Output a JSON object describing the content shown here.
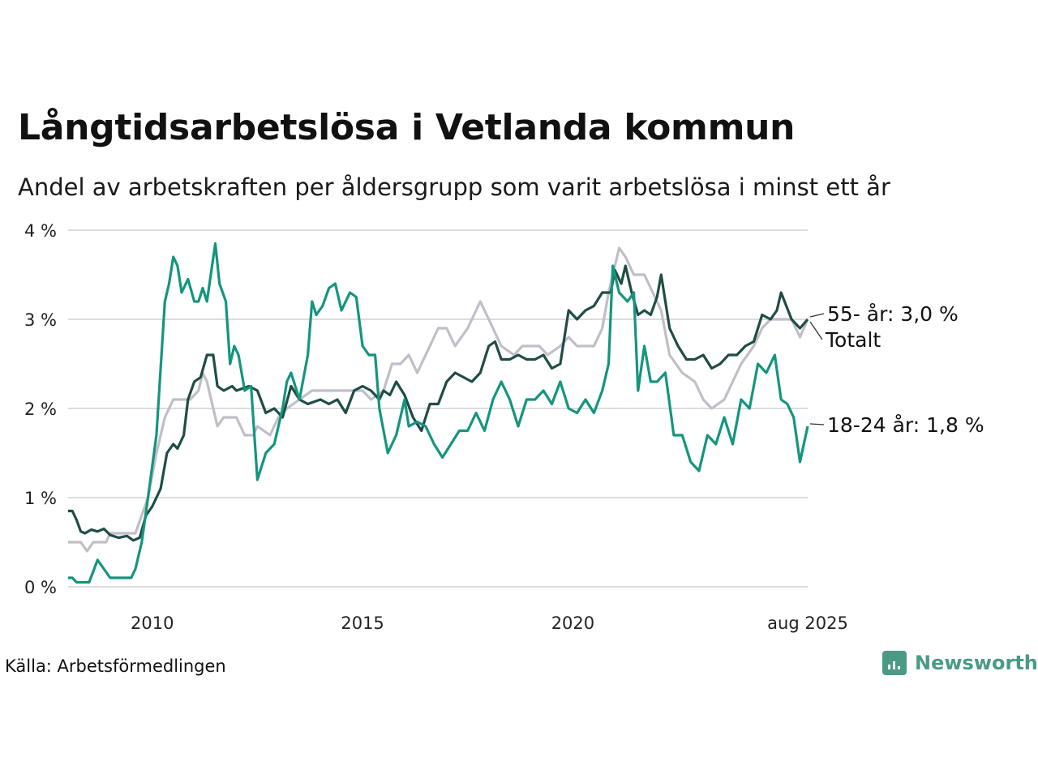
{
  "title": "Långtidsarbetslösa i Vetlanda kommun",
  "subtitle": "Andel av arbetskraften per åldersgrupp som varit arbetslösa i minst ett år",
  "source": "Källa: Arbetsförmedlingen",
  "brand": "Newsworthy",
  "chart_data": {
    "type": "line",
    "x_range": [
      2008.0,
      2025.583
    ],
    "ylim": [
      0,
      4
    ],
    "grid": true,
    "x_ticks": [
      {
        "value": 2010,
        "label": "2010"
      },
      {
        "value": 2015,
        "label": "2015"
      },
      {
        "value": 2020,
        "label": "2020"
      },
      {
        "value": 2025.583,
        "label": "aug 2025"
      }
    ],
    "y_ticks": [
      {
        "value": 0,
        "label": "0 %"
      },
      {
        "value": 1,
        "label": "1 %"
      },
      {
        "value": 2,
        "label": "2 %"
      },
      {
        "value": 3,
        "label": "3 %"
      },
      {
        "value": 4,
        "label": "4 %"
      }
    ],
    "series": [
      {
        "name": "Totalt",
        "end_label": "Totalt",
        "color": "#c0bec8",
        "points": [
          [
            2008.0,
            0.5
          ],
          [
            2008.3,
            0.5
          ],
          [
            2008.45,
            0.4
          ],
          [
            2008.6,
            0.5
          ],
          [
            2008.9,
            0.5
          ],
          [
            2009.0,
            0.6
          ],
          [
            2009.6,
            0.6
          ],
          [
            2009.9,
            1.0
          ],
          [
            2010.1,
            1.5
          ],
          [
            2010.3,
            1.9
          ],
          [
            2010.5,
            2.1
          ],
          [
            2010.9,
            2.1
          ],
          [
            2011.1,
            2.2
          ],
          [
            2011.2,
            2.4
          ],
          [
            2011.3,
            2.3
          ],
          [
            2011.4,
            2.1
          ],
          [
            2011.55,
            1.8
          ],
          [
            2011.7,
            1.9
          ],
          [
            2012.0,
            1.9
          ],
          [
            2012.2,
            1.7
          ],
          [
            2012.4,
            1.7
          ],
          [
            2012.5,
            1.8
          ],
          [
            2012.8,
            1.7
          ],
          [
            2013.0,
            1.9
          ],
          [
            2013.2,
            2.0
          ],
          [
            2013.5,
            2.1
          ],
          [
            2013.8,
            2.2
          ],
          [
            2014.3,
            2.2
          ],
          [
            2014.6,
            2.2
          ],
          [
            2015.0,
            2.2
          ],
          [
            2015.2,
            2.1
          ],
          [
            2015.5,
            2.2
          ],
          [
            2015.7,
            2.5
          ],
          [
            2015.9,
            2.5
          ],
          [
            2016.1,
            2.6
          ],
          [
            2016.3,
            2.4
          ],
          [
            2016.5,
            2.6
          ],
          [
            2016.8,
            2.9
          ],
          [
            2017.0,
            2.9
          ],
          [
            2017.2,
            2.7
          ],
          [
            2017.5,
            2.9
          ],
          [
            2017.8,
            3.2
          ],
          [
            2018.0,
            3.0
          ],
          [
            2018.3,
            2.7
          ],
          [
            2018.6,
            2.6
          ],
          [
            2018.8,
            2.7
          ],
          [
            2019.2,
            2.7
          ],
          [
            2019.4,
            2.6
          ],
          [
            2019.7,
            2.7
          ],
          [
            2019.9,
            2.8
          ],
          [
            2020.1,
            2.7
          ],
          [
            2020.3,
            2.7
          ],
          [
            2020.5,
            2.7
          ],
          [
            2020.7,
            2.9
          ],
          [
            2020.85,
            3.3
          ],
          [
            2021.0,
            3.6
          ],
          [
            2021.1,
            3.8
          ],
          [
            2021.25,
            3.7
          ],
          [
            2021.45,
            3.5
          ],
          [
            2021.7,
            3.5
          ],
          [
            2021.9,
            3.3
          ],
          [
            2022.1,
            3.1
          ],
          [
            2022.3,
            2.6
          ],
          [
            2022.6,
            2.4
          ],
          [
            2022.9,
            2.3
          ],
          [
            2023.1,
            2.1
          ],
          [
            2023.3,
            2.0
          ],
          [
            2023.6,
            2.1
          ],
          [
            2023.8,
            2.3
          ],
          [
            2024.0,
            2.5
          ],
          [
            2024.3,
            2.7
          ],
          [
            2024.5,
            2.9
          ],
          [
            2024.7,
            3.0
          ],
          [
            2024.9,
            3.0
          ],
          [
            2025.2,
            3.0
          ],
          [
            2025.4,
            2.8
          ],
          [
            2025.583,
            3.0
          ]
        ]
      },
      {
        "name": "55- år",
        "end_label": "55- år: 3,0 %",
        "color": "#1f4d45",
        "points": [
          [
            2008.0,
            0.85
          ],
          [
            2008.1,
            0.85
          ],
          [
            2008.2,
            0.75
          ],
          [
            2008.3,
            0.62
          ],
          [
            2008.4,
            0.6
          ],
          [
            2008.55,
            0.64
          ],
          [
            2008.7,
            0.62
          ],
          [
            2008.85,
            0.65
          ],
          [
            2009.0,
            0.58
          ],
          [
            2009.2,
            0.55
          ],
          [
            2009.4,
            0.57
          ],
          [
            2009.55,
            0.52
          ],
          [
            2009.7,
            0.55
          ],
          [
            2009.85,
            0.8
          ],
          [
            2010.0,
            0.9
          ],
          [
            2010.2,
            1.1
          ],
          [
            2010.35,
            1.5
          ],
          [
            2010.5,
            1.6
          ],
          [
            2010.6,
            1.55
          ],
          [
            2010.75,
            1.7
          ],
          [
            2010.85,
            2.1
          ],
          [
            2011.0,
            2.3
          ],
          [
            2011.15,
            2.35
          ],
          [
            2011.3,
            2.6
          ],
          [
            2011.45,
            2.6
          ],
          [
            2011.55,
            2.25
          ],
          [
            2011.7,
            2.2
          ],
          [
            2011.9,
            2.25
          ],
          [
            2012.0,
            2.2
          ],
          [
            2012.3,
            2.25
          ],
          [
            2012.5,
            2.2
          ],
          [
            2012.7,
            1.95
          ],
          [
            2012.9,
            2.0
          ],
          [
            2013.1,
            1.9
          ],
          [
            2013.3,
            2.25
          ],
          [
            2013.5,
            2.1
          ],
          [
            2013.7,
            2.05
          ],
          [
            2014.0,
            2.1
          ],
          [
            2014.2,
            2.05
          ],
          [
            2014.4,
            2.1
          ],
          [
            2014.6,
            1.95
          ],
          [
            2014.8,
            2.2
          ],
          [
            2015.0,
            2.25
          ],
          [
            2015.2,
            2.2
          ],
          [
            2015.4,
            2.1
          ],
          [
            2015.5,
            2.2
          ],
          [
            2015.65,
            2.15
          ],
          [
            2015.8,
            2.3
          ],
          [
            2016.0,
            2.15
          ],
          [
            2016.2,
            1.9
          ],
          [
            2016.4,
            1.75
          ],
          [
            2016.6,
            2.05
          ],
          [
            2016.8,
            2.05
          ],
          [
            2017.0,
            2.3
          ],
          [
            2017.2,
            2.4
          ],
          [
            2017.4,
            2.35
          ],
          [
            2017.6,
            2.3
          ],
          [
            2017.8,
            2.4
          ],
          [
            2018.0,
            2.7
          ],
          [
            2018.15,
            2.75
          ],
          [
            2018.3,
            2.55
          ],
          [
            2018.5,
            2.55
          ],
          [
            2018.7,
            2.6
          ],
          [
            2018.9,
            2.55
          ],
          [
            2019.1,
            2.55
          ],
          [
            2019.3,
            2.6
          ],
          [
            2019.5,
            2.45
          ],
          [
            2019.7,
            2.5
          ],
          [
            2019.9,
            3.1
          ],
          [
            2020.1,
            3.0
          ],
          [
            2020.3,
            3.1
          ],
          [
            2020.5,
            3.15
          ],
          [
            2020.7,
            3.3
          ],
          [
            2020.9,
            3.3
          ],
          [
            2021.0,
            3.55
          ],
          [
            2021.15,
            3.4
          ],
          [
            2021.25,
            3.6
          ],
          [
            2021.4,
            3.3
          ],
          [
            2021.55,
            3.05
          ],
          [
            2021.7,
            3.1
          ],
          [
            2021.85,
            3.05
          ],
          [
            2022.0,
            3.25
          ],
          [
            2022.1,
            3.5
          ],
          [
            2022.3,
            2.9
          ],
          [
            2022.5,
            2.7
          ],
          [
            2022.7,
            2.55
          ],
          [
            2022.9,
            2.55
          ],
          [
            2023.1,
            2.6
          ],
          [
            2023.3,
            2.45
          ],
          [
            2023.5,
            2.5
          ],
          [
            2023.7,
            2.6
          ],
          [
            2023.9,
            2.6
          ],
          [
            2024.1,
            2.7
          ],
          [
            2024.3,
            2.75
          ],
          [
            2024.5,
            3.05
          ],
          [
            2024.7,
            3.0
          ],
          [
            2024.85,
            3.1
          ],
          [
            2024.95,
            3.3
          ],
          [
            2025.2,
            3.0
          ],
          [
            2025.4,
            2.9
          ],
          [
            2025.583,
            3.0
          ]
        ]
      },
      {
        "name": "18-24 år",
        "end_label": "18-24 år: 1,8 %",
        "color": "#14957e",
        "points": [
          [
            2008.0,
            0.1
          ],
          [
            2008.1,
            0.1
          ],
          [
            2008.2,
            0.05
          ],
          [
            2008.5,
            0.05
          ],
          [
            2008.7,
            0.3
          ],
          [
            2008.85,
            0.2
          ],
          [
            2009.0,
            0.1
          ],
          [
            2009.5,
            0.1
          ],
          [
            2009.6,
            0.2
          ],
          [
            2009.75,
            0.5
          ],
          [
            2009.9,
            1.0
          ],
          [
            2010.1,
            1.7
          ],
          [
            2010.3,
            3.2
          ],
          [
            2010.4,
            3.4
          ],
          [
            2010.5,
            3.7
          ],
          [
            2010.6,
            3.6
          ],
          [
            2010.7,
            3.3
          ],
          [
            2010.85,
            3.45
          ],
          [
            2011.0,
            3.2
          ],
          [
            2011.1,
            3.2
          ],
          [
            2011.2,
            3.35
          ],
          [
            2011.3,
            3.2
          ],
          [
            2011.5,
            3.85
          ],
          [
            2011.6,
            3.4
          ],
          [
            2011.75,
            3.2
          ],
          [
            2011.85,
            2.5
          ],
          [
            2011.95,
            2.7
          ],
          [
            2012.05,
            2.6
          ],
          [
            2012.2,
            2.2
          ],
          [
            2012.35,
            2.25
          ],
          [
            2012.5,
            1.2
          ],
          [
            2012.7,
            1.5
          ],
          [
            2012.9,
            1.6
          ],
          [
            2013.1,
            2.0
          ],
          [
            2013.2,
            2.3
          ],
          [
            2013.3,
            2.4
          ],
          [
            2013.5,
            2.1
          ],
          [
            2013.7,
            2.6
          ],
          [
            2013.8,
            3.2
          ],
          [
            2013.9,
            3.05
          ],
          [
            2014.05,
            3.15
          ],
          [
            2014.2,
            3.35
          ],
          [
            2014.35,
            3.4
          ],
          [
            2014.5,
            3.1
          ],
          [
            2014.7,
            3.3
          ],
          [
            2014.85,
            3.25
          ],
          [
            2015.0,
            2.7
          ],
          [
            2015.15,
            2.6
          ],
          [
            2015.3,
            2.6
          ],
          [
            2015.4,
            2.0
          ],
          [
            2015.6,
            1.5
          ],
          [
            2015.8,
            1.7
          ],
          [
            2016.0,
            2.1
          ],
          [
            2016.1,
            1.8
          ],
          [
            2016.3,
            1.85
          ],
          [
            2016.5,
            1.8
          ],
          [
            2016.7,
            1.6
          ],
          [
            2016.9,
            1.45
          ],
          [
            2017.1,
            1.6
          ],
          [
            2017.3,
            1.75
          ],
          [
            2017.5,
            1.75
          ],
          [
            2017.7,
            1.95
          ],
          [
            2017.9,
            1.75
          ],
          [
            2018.1,
            2.1
          ],
          [
            2018.3,
            2.3
          ],
          [
            2018.5,
            2.1
          ],
          [
            2018.7,
            1.8
          ],
          [
            2018.9,
            2.1
          ],
          [
            2019.1,
            2.1
          ],
          [
            2019.3,
            2.2
          ],
          [
            2019.5,
            2.05
          ],
          [
            2019.7,
            2.3
          ],
          [
            2019.9,
            2.0
          ],
          [
            2020.1,
            1.95
          ],
          [
            2020.3,
            2.1
          ],
          [
            2020.5,
            1.95
          ],
          [
            2020.7,
            2.2
          ],
          [
            2020.85,
            2.5
          ],
          [
            2020.95,
            3.6
          ],
          [
            2021.1,
            3.3
          ],
          [
            2021.3,
            3.2
          ],
          [
            2021.45,
            3.3
          ],
          [
            2021.55,
            2.2
          ],
          [
            2021.7,
            2.7
          ],
          [
            2021.85,
            2.3
          ],
          [
            2022.0,
            2.3
          ],
          [
            2022.2,
            2.4
          ],
          [
            2022.4,
            1.7
          ],
          [
            2022.6,
            1.7
          ],
          [
            2022.8,
            1.4
          ],
          [
            2023.0,
            1.3
          ],
          [
            2023.2,
            1.7
          ],
          [
            2023.4,
            1.6
          ],
          [
            2023.6,
            1.9
          ],
          [
            2023.8,
            1.6
          ],
          [
            2024.0,
            2.1
          ],
          [
            2024.2,
            2.0
          ],
          [
            2024.4,
            2.5
          ],
          [
            2024.6,
            2.4
          ],
          [
            2024.8,
            2.6
          ],
          [
            2024.95,
            2.1
          ],
          [
            2025.1,
            2.05
          ],
          [
            2025.25,
            1.9
          ],
          [
            2025.4,
            1.4
          ],
          [
            2025.583,
            1.8
          ]
        ]
      }
    ]
  }
}
